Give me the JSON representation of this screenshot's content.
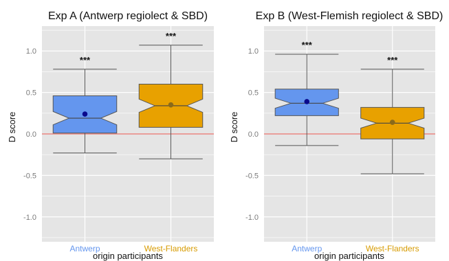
{
  "colors": {
    "panel_bg": "#e5e5e5",
    "grid": "#ffffff",
    "reference_line": "#e8706a",
    "antwerp_fill": "#6496ee",
    "antwerp_label": "#6496ee",
    "west_flanders_fill": "#e8a100",
    "west_flanders_label": "#d79b00",
    "point_antwerp": "#0a0a8c",
    "point_west_flanders": "#8a6a1a",
    "tick_text": "#7a7a7a",
    "whisker": "#555555"
  },
  "chart_data": [
    {
      "type": "box",
      "title": "Exp A (Antwerp regiolect & SBD)",
      "xlabel": "origin participants",
      "ylabel": "D score",
      "ylim": [
        -1.3,
        1.3
      ],
      "yticks": [
        1.0,
        0.5,
        0.0,
        -0.5,
        -1.0
      ],
      "ytick_labels": [
        "1.0",
        "0.5",
        "0.0",
        "-0.5",
        "-1.0"
      ],
      "reference_line": 0,
      "grid": true,
      "categories": [
        "Antwerp",
        "West-Flanders"
      ],
      "boxes": [
        {
          "name": "Antwerp",
          "whisker_low": -0.23,
          "q1": 0.01,
          "median": 0.19,
          "q3": 0.46,
          "whisker_high": 0.78,
          "mean": 0.24,
          "notch": [
            0.11,
            0.27
          ],
          "annotation": "***"
        },
        {
          "name": "West-Flanders",
          "whisker_low": -0.3,
          "q1": 0.08,
          "median": 0.34,
          "q3": 0.6,
          "whisker_high": 1.07,
          "mean": 0.35,
          "notch": [
            0.26,
            0.42
          ],
          "annotation": "***"
        }
      ]
    },
    {
      "type": "box",
      "title": "Exp B (West-Flemish regiolect & SBD)",
      "xlabel": "origin participants",
      "ylabel": "D score",
      "ylim": [
        -1.3,
        1.3
      ],
      "yticks": [
        1.0,
        0.5,
        0.0,
        -0.5,
        -1.0
      ],
      "ytick_labels": [
        "1.0",
        "0.5",
        "0.0",
        "-0.5",
        "-1.0"
      ],
      "reference_line": 0,
      "grid": true,
      "categories": [
        "Antwerp",
        "West-Flanders"
      ],
      "boxes": [
        {
          "name": "Antwerp",
          "whisker_low": -0.14,
          "q1": 0.22,
          "median": 0.37,
          "q3": 0.54,
          "whisker_high": 0.96,
          "mean": 0.39,
          "notch": [
            0.31,
            0.43
          ],
          "annotation": "***"
        },
        {
          "name": "West-Flanders",
          "whisker_low": -0.48,
          "q1": -0.06,
          "median": 0.13,
          "q3": 0.32,
          "whisker_high": 0.78,
          "mean": 0.14,
          "notch": [
            0.07,
            0.19
          ],
          "annotation": "***"
        }
      ]
    }
  ]
}
